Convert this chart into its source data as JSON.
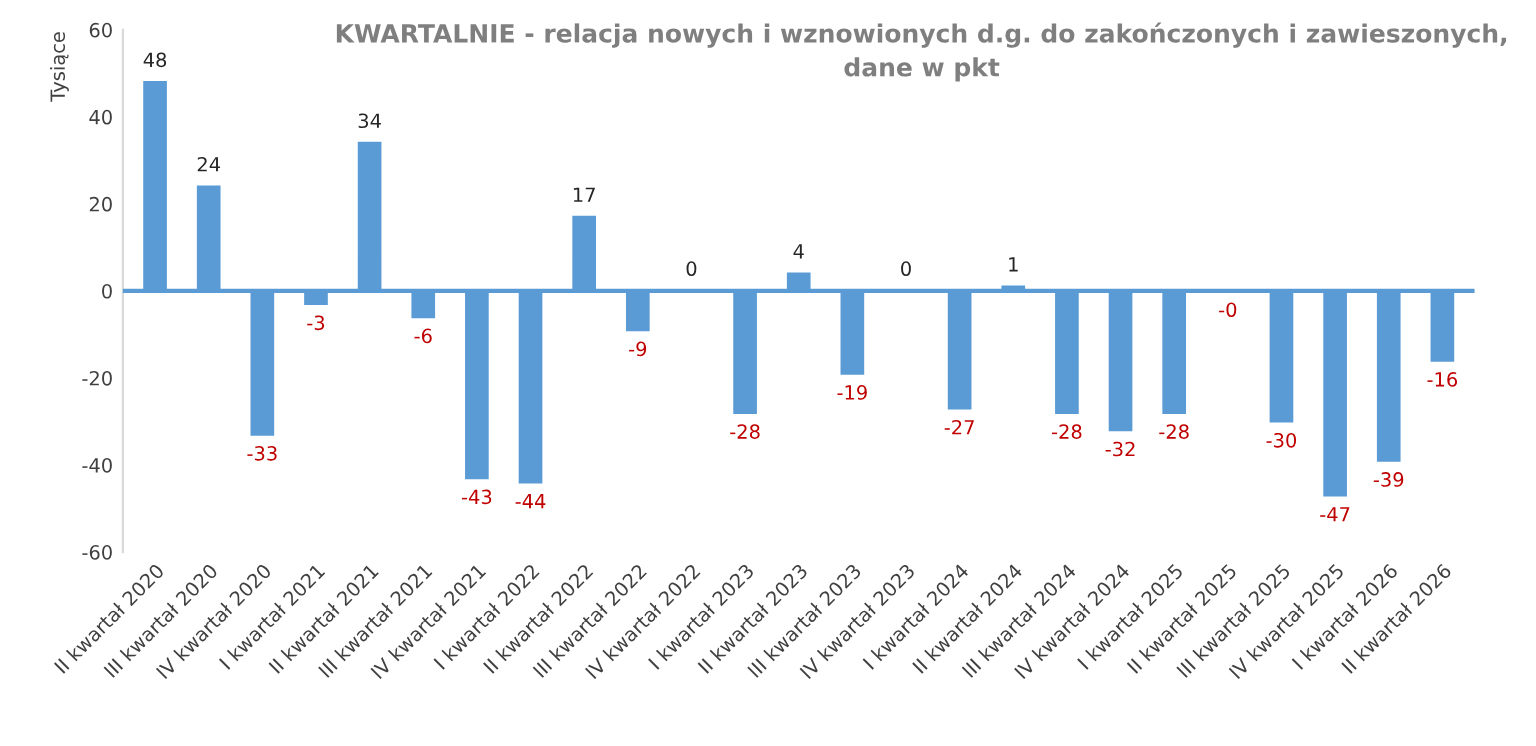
{
  "chart_data": {
    "type": "bar",
    "title": "KWARTALNIE - relacja nowych i wznowionych d.g. do zakończonych i zawieszonych,\ndane w pkt",
    "ylabel": "Tysiące",
    "categories": [
      "II kwartał 2020",
      "III kwartał 2020",
      "IV kwartał 2020",
      "I kwartał 2021",
      "II kwartał 2021",
      "III kwartał 2021",
      "IV kwartał 2021",
      "I kwartał 2022",
      "II kwartał 2022",
      "III kwartał 2022",
      "IV kwartał 2022",
      "I kwartał 2023",
      "II kwartał 2023",
      "III kwartał 2023",
      "IV kwartał 2023",
      "I kwartał 2024",
      "II kwartał 2024",
      "III kwartał 2024",
      "IV kwartał 2024",
      "I kwartał 2025",
      "II kwartał 2025",
      "III kwartał 2025",
      "IV kwartał 2025",
      "I kwartał 2026",
      "II kwartał 2026"
    ],
    "series": [
      {
        "color": "#5b9bd5",
        "values": [
          48,
          24,
          -33,
          -3,
          34,
          -6,
          -43,
          -44,
          17,
          -9,
          0,
          -28,
          4,
          -19,
          0,
          -27,
          1,
          -28,
          -32,
          -28,
          0,
          -30,
          -47,
          -39,
          -16
        ]
      }
    ],
    "value_labels": [
      "48",
      "24",
      "-33",
      "-3",
      "34",
      "-6",
      "-43",
      "-44",
      "17",
      "-9",
      "0",
      "-28",
      "4",
      "-19",
      "0",
      "-27",
      "1",
      "-28",
      "-32",
      "-28",
      "-0",
      "-30",
      "-47",
      "-39",
      "-16"
    ],
    "ylim": [
      -60,
      60
    ],
    "yticks": [
      -60,
      -40,
      -20,
      0,
      20,
      40,
      60
    ],
    "ref_lines": [
      {
        "axis": "y",
        "value": 0,
        "color": "#5b9bd5"
      }
    ],
    "grid": false
  }
}
